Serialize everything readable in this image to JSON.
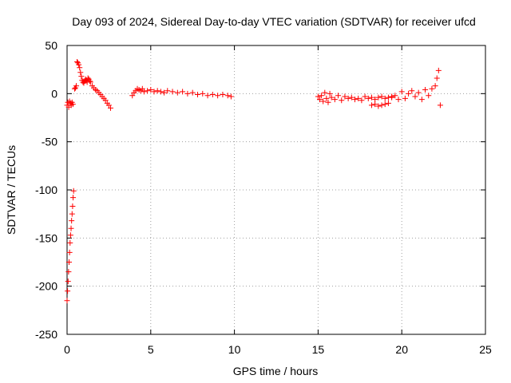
{
  "chart_data": {
    "type": "scatter",
    "title": "Day 093 of 2024, Sidereal Day-to-day VTEC variation (SDTVAR) for receiver ufcd",
    "xlabel": "GPS time / hours",
    "ylabel": "SDTVAR / TECUs",
    "xlim": [
      0,
      25
    ],
    "ylim": [
      -250,
      50
    ],
    "xticks": [
      0,
      5,
      10,
      15,
      20,
      25
    ],
    "yticks": [
      -250,
      -200,
      -150,
      -100,
      -50,
      0,
      50
    ],
    "grid": true,
    "marker": "plus",
    "series": [
      {
        "name": "SDTVAR",
        "color": "#ff0000",
        "segments": [
          {
            "x": [
              0.0,
              0.05,
              0.1,
              0.15,
              0.2,
              0.25,
              0.3,
              0.35
            ],
            "y": [
              -12,
              -9,
              -14,
              -8,
              -10,
              -12,
              -9,
              -11
            ]
          },
          {
            "x": [
              0.0,
              0.03,
              0.06,
              0.09,
              0.12,
              0.15,
              0.18,
              0.21,
              0.24,
              0.27,
              0.3,
              0.33,
              0.36,
              0.39
            ],
            "y": [
              -215,
              -205,
              -195,
              -185,
              -175,
              -165,
              -155,
              -147,
              -140,
              -132,
              -125,
              -117,
              -108,
              -101
            ]
          },
          {
            "x": [
              0.45,
              0.5,
              0.55
            ],
            "y": [
              5,
              6,
              8
            ]
          },
          {
            "x": [
              0.6,
              0.65,
              0.7,
              0.75,
              0.8,
              0.85,
              0.9,
              0.95,
              1.0,
              1.05,
              1.1,
              1.15,
              1.2,
              1.25,
              1.3,
              1.35,
              1.4
            ],
            "y": [
              33,
              32,
              30,
              27,
              22,
              18,
              14,
              12,
              11,
              13,
              15,
              14,
              12,
              16,
              15,
              13,
              12
            ]
          },
          {
            "x": [
              1.5,
              1.6,
              1.7,
              1.8,
              1.9,
              2.0,
              2.1,
              2.2,
              2.3,
              2.4,
              2.5,
              2.6
            ],
            "y": [
              8,
              6,
              4,
              3,
              1,
              -1,
              -3,
              -5,
              -7,
              -10,
              -12,
              -15
            ]
          },
          {
            "x": [
              3.9,
              4.0,
              4.1,
              4.2,
              4.3,
              4.4,
              4.5,
              4.6,
              4.8,
              5.0,
              5.2,
              5.4,
              5.6,
              5.8,
              6.0,
              6.3,
              6.6,
              6.9,
              7.2,
              7.5,
              7.8,
              8.1,
              8.4,
              8.7,
              9.0,
              9.3,
              9.6,
              9.8
            ],
            "y": [
              -2,
              1,
              3,
              5,
              4,
              3,
              5,
              2,
              3,
              4,
              2,
              3,
              2,
              1,
              3,
              2,
              1,
              2,
              0,
              1,
              -1,
              0,
              -2,
              -1,
              -2,
              -1,
              -2,
              -3
            ]
          },
          {
            "x": [
              15.0,
              15.1,
              15.2,
              15.3,
              15.4,
              15.5,
              15.6,
              15.7,
              15.8,
              16.0,
              16.2,
              16.4,
              16.6,
              16.8,
              17.0,
              17.2,
              17.4,
              17.6,
              17.8,
              18.0,
              18.2,
              18.4,
              18.6,
              18.8,
              19.0,
              19.2,
              19.4
            ],
            "y": [
              -3,
              -6,
              -2,
              -8,
              1,
              -5,
              -9,
              0,
              -4,
              -6,
              -2,
              -7,
              -3,
              -5,
              -4,
              -6,
              -5,
              -7,
              -3,
              -5,
              -4,
              -6,
              -4,
              -3,
              -5,
              -4,
              -3
            ]
          },
          {
            "x": [
              18.2,
              18.4,
              18.6,
              18.8,
              19.0,
              19.2
            ],
            "y": [
              -12,
              -11,
              -13,
              -12,
              -11,
              -10
            ]
          },
          {
            "x": [
              19.4,
              19.6,
              19.8,
              20.0,
              20.2,
              20.4,
              20.6,
              20.8,
              21.0,
              21.2,
              21.4,
              21.6,
              21.8,
              22.0,
              22.1,
              22.2,
              22.3
            ],
            "y": [
              -4,
              -2,
              -6,
              2,
              -5,
              0,
              3,
              -3,
              1,
              -6,
              4,
              -2,
              5,
              8,
              16,
              24,
              -12
            ]
          }
        ]
      }
    ]
  }
}
